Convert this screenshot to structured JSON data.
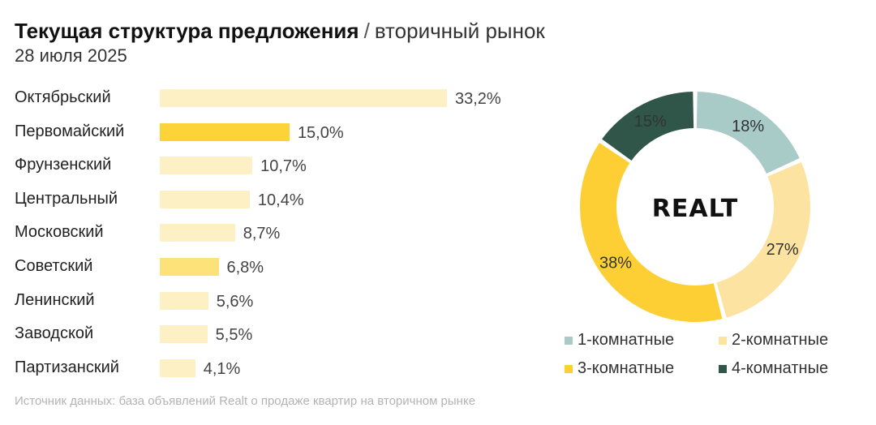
{
  "title": {
    "main": "Текущая структура предложения",
    "separator": "/",
    "sub": "вторичный рынок",
    "date": "28 июля 2025"
  },
  "logo_text": "REALT",
  "source": "Источник данных: база объявлений Realt о продаже квартир на вторичном рынке",
  "colors": {
    "bar_light": "#fdf0c4",
    "bar_highlight": "#fdd33a",
    "bar_highlight_mid": "#fde27a",
    "room1": "#a9cbc8",
    "room2": "#fde3a2",
    "room3": "#fdcf35",
    "room4": "#2f5648"
  },
  "chart_data": [
    {
      "type": "bar",
      "orientation": "horizontal",
      "categories": [
        "Октябрьский",
        "Первомайский",
        "Фрунзенский",
        "Центральный",
        "Московский",
        "Советский",
        "Ленинский",
        "Заводской",
        "Партизанский"
      ],
      "values": [
        33.2,
        15.0,
        10.7,
        10.4,
        8.7,
        6.8,
        5.6,
        5.5,
        4.1
      ],
      "value_labels": [
        "33,2%",
        "15,0%",
        "10,7%",
        "10,4%",
        "8,7%",
        "6,8%",
        "5,6%",
        "5,5%",
        "4,1%"
      ],
      "highlight": [
        false,
        true,
        false,
        false,
        false,
        true,
        false,
        false,
        false
      ],
      "xlim": [
        0,
        33.2
      ],
      "grid": false
    },
    {
      "type": "pie",
      "donut": true,
      "labels": [
        "1-комнатные",
        "2-комнатные",
        "3-комнатные",
        "4-комнатные"
      ],
      "values": [
        18,
        27,
        38,
        15
      ],
      "value_labels": [
        "18%",
        "27%",
        "38%",
        "15%"
      ],
      "legend_position": "bottom"
    }
  ]
}
